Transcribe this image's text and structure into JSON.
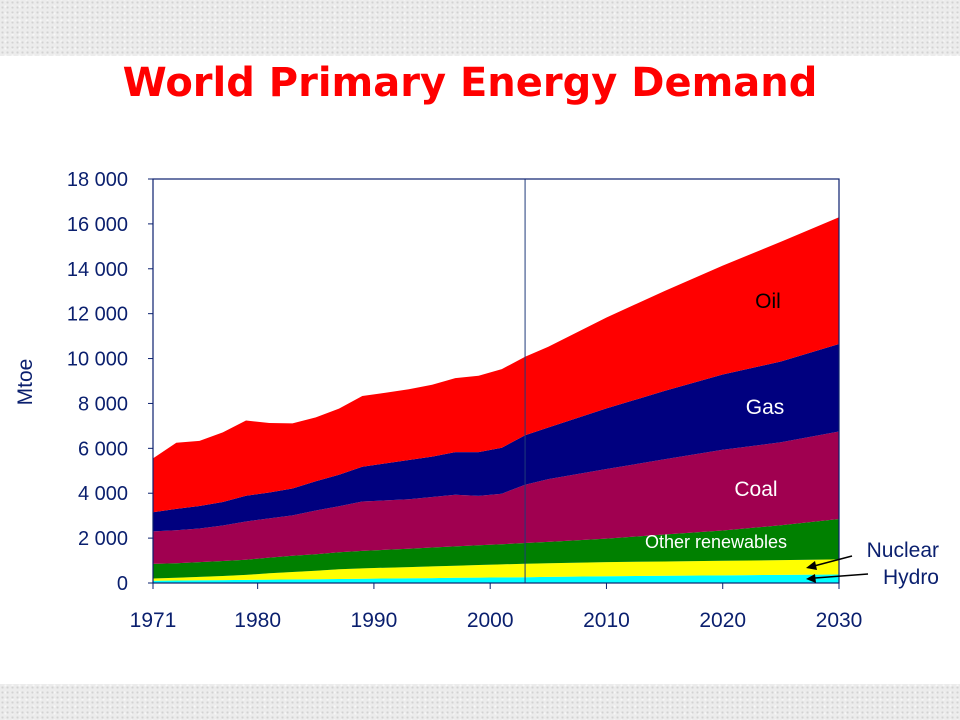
{
  "chart_data": {
    "type": "area",
    "title": "World Primary Energy Demand",
    "xlabel": "",
    "ylabel": "Mtoe",
    "x": [
      1971,
      1973,
      1975,
      1977,
      1979,
      1981,
      1983,
      1985,
      1987,
      1989,
      1991,
      1993,
      1995,
      1997,
      1999,
      2001,
      2003,
      2005,
      2010,
      2015,
      2020,
      2025,
      2030
    ],
    "xticks": [
      "1971",
      "1980",
      "1990",
      "2000",
      "2010",
      "2020",
      "2030"
    ],
    "xtick_values": [
      1971,
      1980,
      1990,
      2000,
      2010,
      2020,
      2030
    ],
    "ylim": [
      0,
      18000
    ],
    "yticks": [
      "0",
      "2 000",
      "4 000",
      "6 000",
      "8 000",
      "10 000",
      "12 000",
      "14 000",
      "16 000",
      "18 000"
    ],
    "ytick_values": [
      0,
      2000,
      4000,
      6000,
      8000,
      10000,
      12000,
      14000,
      16000,
      18000
    ],
    "stacked": true,
    "divider_year": 2003,
    "series": [
      {
        "name": "Hydro",
        "color": "#00ffff",
        "values": [
          100,
          110,
          120,
          130,
          140,
          150,
          160,
          170,
          180,
          190,
          200,
          210,
          220,
          230,
          240,
          250,
          260,
          270,
          300,
          320,
          340,
          360,
          380
        ]
      },
      {
        "name": "Nuclear",
        "color": "#ffff00",
        "values": [
          100,
          120,
          150,
          180,
          220,
          280,
          330,
          380,
          430,
          460,
          480,
          500,
          520,
          540,
          560,
          580,
          600,
          610,
          630,
          640,
          650,
          660,
          670
        ]
      },
      {
        "name": "Other renewables",
        "color": "#008000",
        "values": [
          650,
          650,
          660,
          670,
          680,
          700,
          720,
          730,
          760,
          780,
          800,
          820,
          840,
          860,
          880,
          900,
          920,
          950,
          1050,
          1200,
          1350,
          1550,
          1800
        ]
      },
      {
        "name": "Coal",
        "color": "#a00050",
        "values": [
          1450,
          1470,
          1500,
          1580,
          1700,
          1750,
          1800,
          1950,
          2050,
          2200,
          2200,
          2200,
          2250,
          2300,
          2200,
          2250,
          2600,
          2800,
          3100,
          3350,
          3600,
          3700,
          3900
        ]
      },
      {
        "name": "Gas",
        "color": "#00007f",
        "values": [
          850,
          950,
          1000,
          1050,
          1150,
          1150,
          1200,
          1300,
          1400,
          1550,
          1650,
          1750,
          1800,
          1900,
          1950,
          2050,
          2200,
          2300,
          2700,
          3050,
          3350,
          3600,
          3900
        ]
      },
      {
        "name": "Oil",
        "color": "#ff0000",
        "values": [
          2400,
          2950,
          2900,
          3100,
          3350,
          3100,
          2900,
          2850,
          2950,
          3150,
          3150,
          3150,
          3200,
          3300,
          3400,
          3500,
          3500,
          3600,
          4050,
          4450,
          4850,
          5330,
          5650
        ]
      }
    ],
    "area_labels": [
      "Oil",
      "Gas",
      "Coal",
      "Other renewables"
    ],
    "callout_labels": [
      "Nuclear",
      "Hydro"
    ],
    "grid": false,
    "legend": "none"
  }
}
